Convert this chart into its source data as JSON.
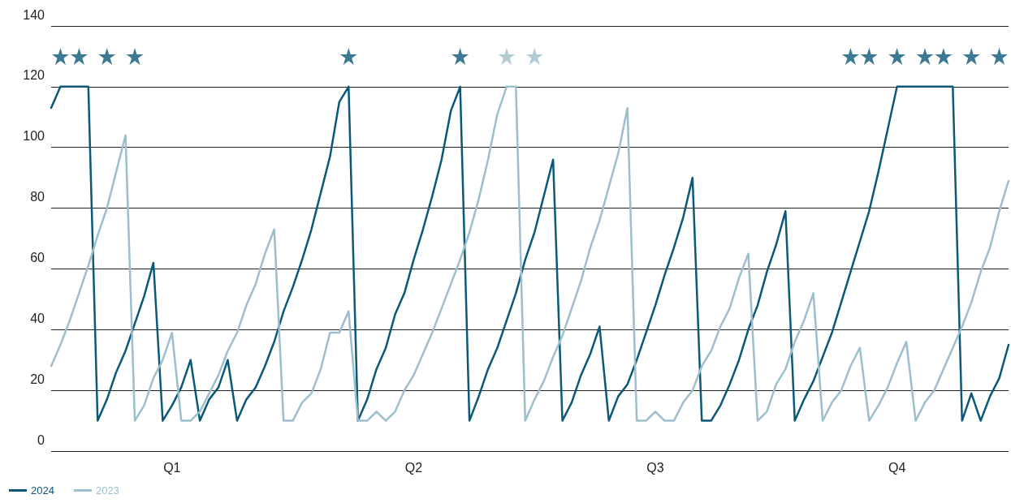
{
  "chart_data": {
    "type": "line",
    "categories": [
      null,
      null,
      null,
      null,
      null,
      null,
      null,
      null,
      null,
      null,
      null,
      null,
      null,
      "Q1",
      null,
      null,
      null,
      null,
      null,
      null,
      null,
      null,
      null,
      null,
      null,
      null,
      null,
      null,
      null,
      null,
      null,
      null,
      null,
      null,
      null,
      null,
      null,
      null,
      null,
      "Q2",
      null,
      null,
      null,
      null,
      null,
      null,
      null,
      null,
      null,
      null,
      null,
      null,
      null,
      null,
      null,
      null,
      null,
      null,
      null,
      null,
      null,
      null,
      null,
      null,
      null,
      "Q3",
      null,
      null,
      null,
      null,
      null,
      null,
      null,
      null,
      null,
      null,
      null,
      null,
      null,
      null,
      null,
      null,
      null,
      null,
      null,
      null,
      null,
      null,
      null,
      null,
      null,
      "Q4",
      null,
      null,
      null,
      null,
      null,
      null,
      null,
      null,
      null,
      null,
      null,
      null
    ],
    "series": [
      {
        "name": "2024",
        "color": "#0b5878",
        "values": [
          113,
          120,
          120,
          120,
          120,
          10,
          17,
          26,
          33,
          42,
          51,
          62,
          10,
          15,
          21,
          30,
          10,
          17,
          21,
          30,
          10,
          17,
          21,
          28,
          36,
          46,
          54,
          63,
          73,
          85,
          97,
          115,
          120,
          10,
          17,
          27,
          34,
          45,
          52,
          63,
          73,
          84,
          96,
          112,
          120,
          10,
          18,
          27,
          34,
          43,
          52,
          63,
          72,
          84,
          96,
          10,
          16,
          25,
          32,
          41,
          10,
          18,
          22,
          30,
          39,
          48,
          58,
          67,
          77,
          90,
          10,
          10,
          15,
          22,
          30,
          40,
          48,
          59,
          68,
          79,
          10,
          17,
          23,
          31,
          39,
          49,
          59,
          69,
          79,
          92,
          106,
          120,
          120,
          120,
          120,
          120,
          120,
          120,
          10,
          19,
          10,
          18,
          24,
          35
        ]
      },
      {
        "name": "2023",
        "color": "#9dbfcd",
        "values": [
          28,
          35,
          43,
          52,
          61,
          71,
          80,
          92,
          104,
          10,
          15,
          24,
          30,
          39,
          10,
          10,
          13,
          19,
          25,
          33,
          39,
          48,
          55,
          65,
          73,
          10,
          10,
          16,
          19,
          27,
          39,
          39,
          46,
          10,
          10,
          13,
          10,
          13,
          20,
          25,
          32,
          39,
          47,
          55,
          63,
          72,
          83,
          96,
          111,
          120,
          120,
          10,
          17,
          23,
          31,
          38,
          47,
          56,
          67,
          76,
          87,
          98,
          113,
          10,
          10,
          13,
          10,
          10,
          16,
          20,
          28,
          33,
          41,
          47,
          57,
          65,
          10,
          13,
          22,
          27,
          36,
          43,
          52,
          10,
          16,
          20,
          28,
          34,
          10,
          15,
          21,
          29,
          36,
          10,
          16,
          20,
          27,
          34,
          41,
          49,
          59,
          67,
          79,
          89
        ]
      },
      {
        "type": "scatter",
        "marker": "star",
        "color": "#0b5878",
        "values": [
          null,
          130,
          null,
          130,
          null,
          null,
          130,
          null,
          null,
          130,
          null,
          null,
          null,
          null,
          null,
          null,
          null,
          null,
          null,
          null,
          null,
          null,
          null,
          null,
          null,
          null,
          null,
          null,
          null,
          null,
          null,
          null,
          130,
          null,
          null,
          null,
          null,
          null,
          null,
          null,
          null,
          null,
          null,
          null,
          130,
          null,
          null,
          null,
          null,
          null,
          null,
          null,
          null,
          null,
          null,
          null,
          null,
          null,
          null,
          null,
          null,
          null,
          null,
          null,
          null,
          null,
          null,
          null,
          null,
          null,
          null,
          null,
          null,
          null,
          null,
          null,
          null,
          null,
          null,
          null,
          null,
          null,
          null,
          null,
          null,
          null,
          130,
          null,
          130,
          null,
          null,
          130,
          null,
          null,
          130,
          null,
          130,
          null,
          null,
          130,
          null,
          null,
          130,
          null
        ]
      },
      {
        "type": "scatter",
        "marker": "star",
        "color": "#9dbfcd",
        "values": [
          null,
          null,
          null,
          null,
          null,
          null,
          null,
          null,
          null,
          null,
          null,
          null,
          null,
          null,
          null,
          null,
          null,
          null,
          null,
          null,
          null,
          null,
          null,
          null,
          null,
          null,
          null,
          null,
          null,
          null,
          null,
          null,
          null,
          null,
          null,
          null,
          null,
          null,
          null,
          null,
          null,
          null,
          null,
          null,
          null,
          null,
          null,
          null,
          null,
          130,
          null,
          null,
          130,
          null,
          null,
          null,
          null,
          null,
          null,
          null,
          null,
          null,
          null,
          null,
          null,
          null,
          null,
          null,
          null,
          null,
          null,
          null,
          null,
          null,
          null,
          null,
          null,
          null,
          null,
          null,
          null,
          null,
          null,
          null,
          null,
          null,
          null,
          null,
          null,
          null,
          null,
          null,
          null,
          null,
          null,
          null,
          null,
          null,
          null,
          null,
          null,
          null,
          null,
          null
        ]
      }
    ],
    "ylim": [
      0,
      140
    ],
    "yticks": [
      0,
      20,
      40,
      60,
      80,
      100,
      120,
      140
    ],
    "grid": "y",
    "legend": "bottom left",
    "marker": "none",
    "line_style": "solid"
  }
}
